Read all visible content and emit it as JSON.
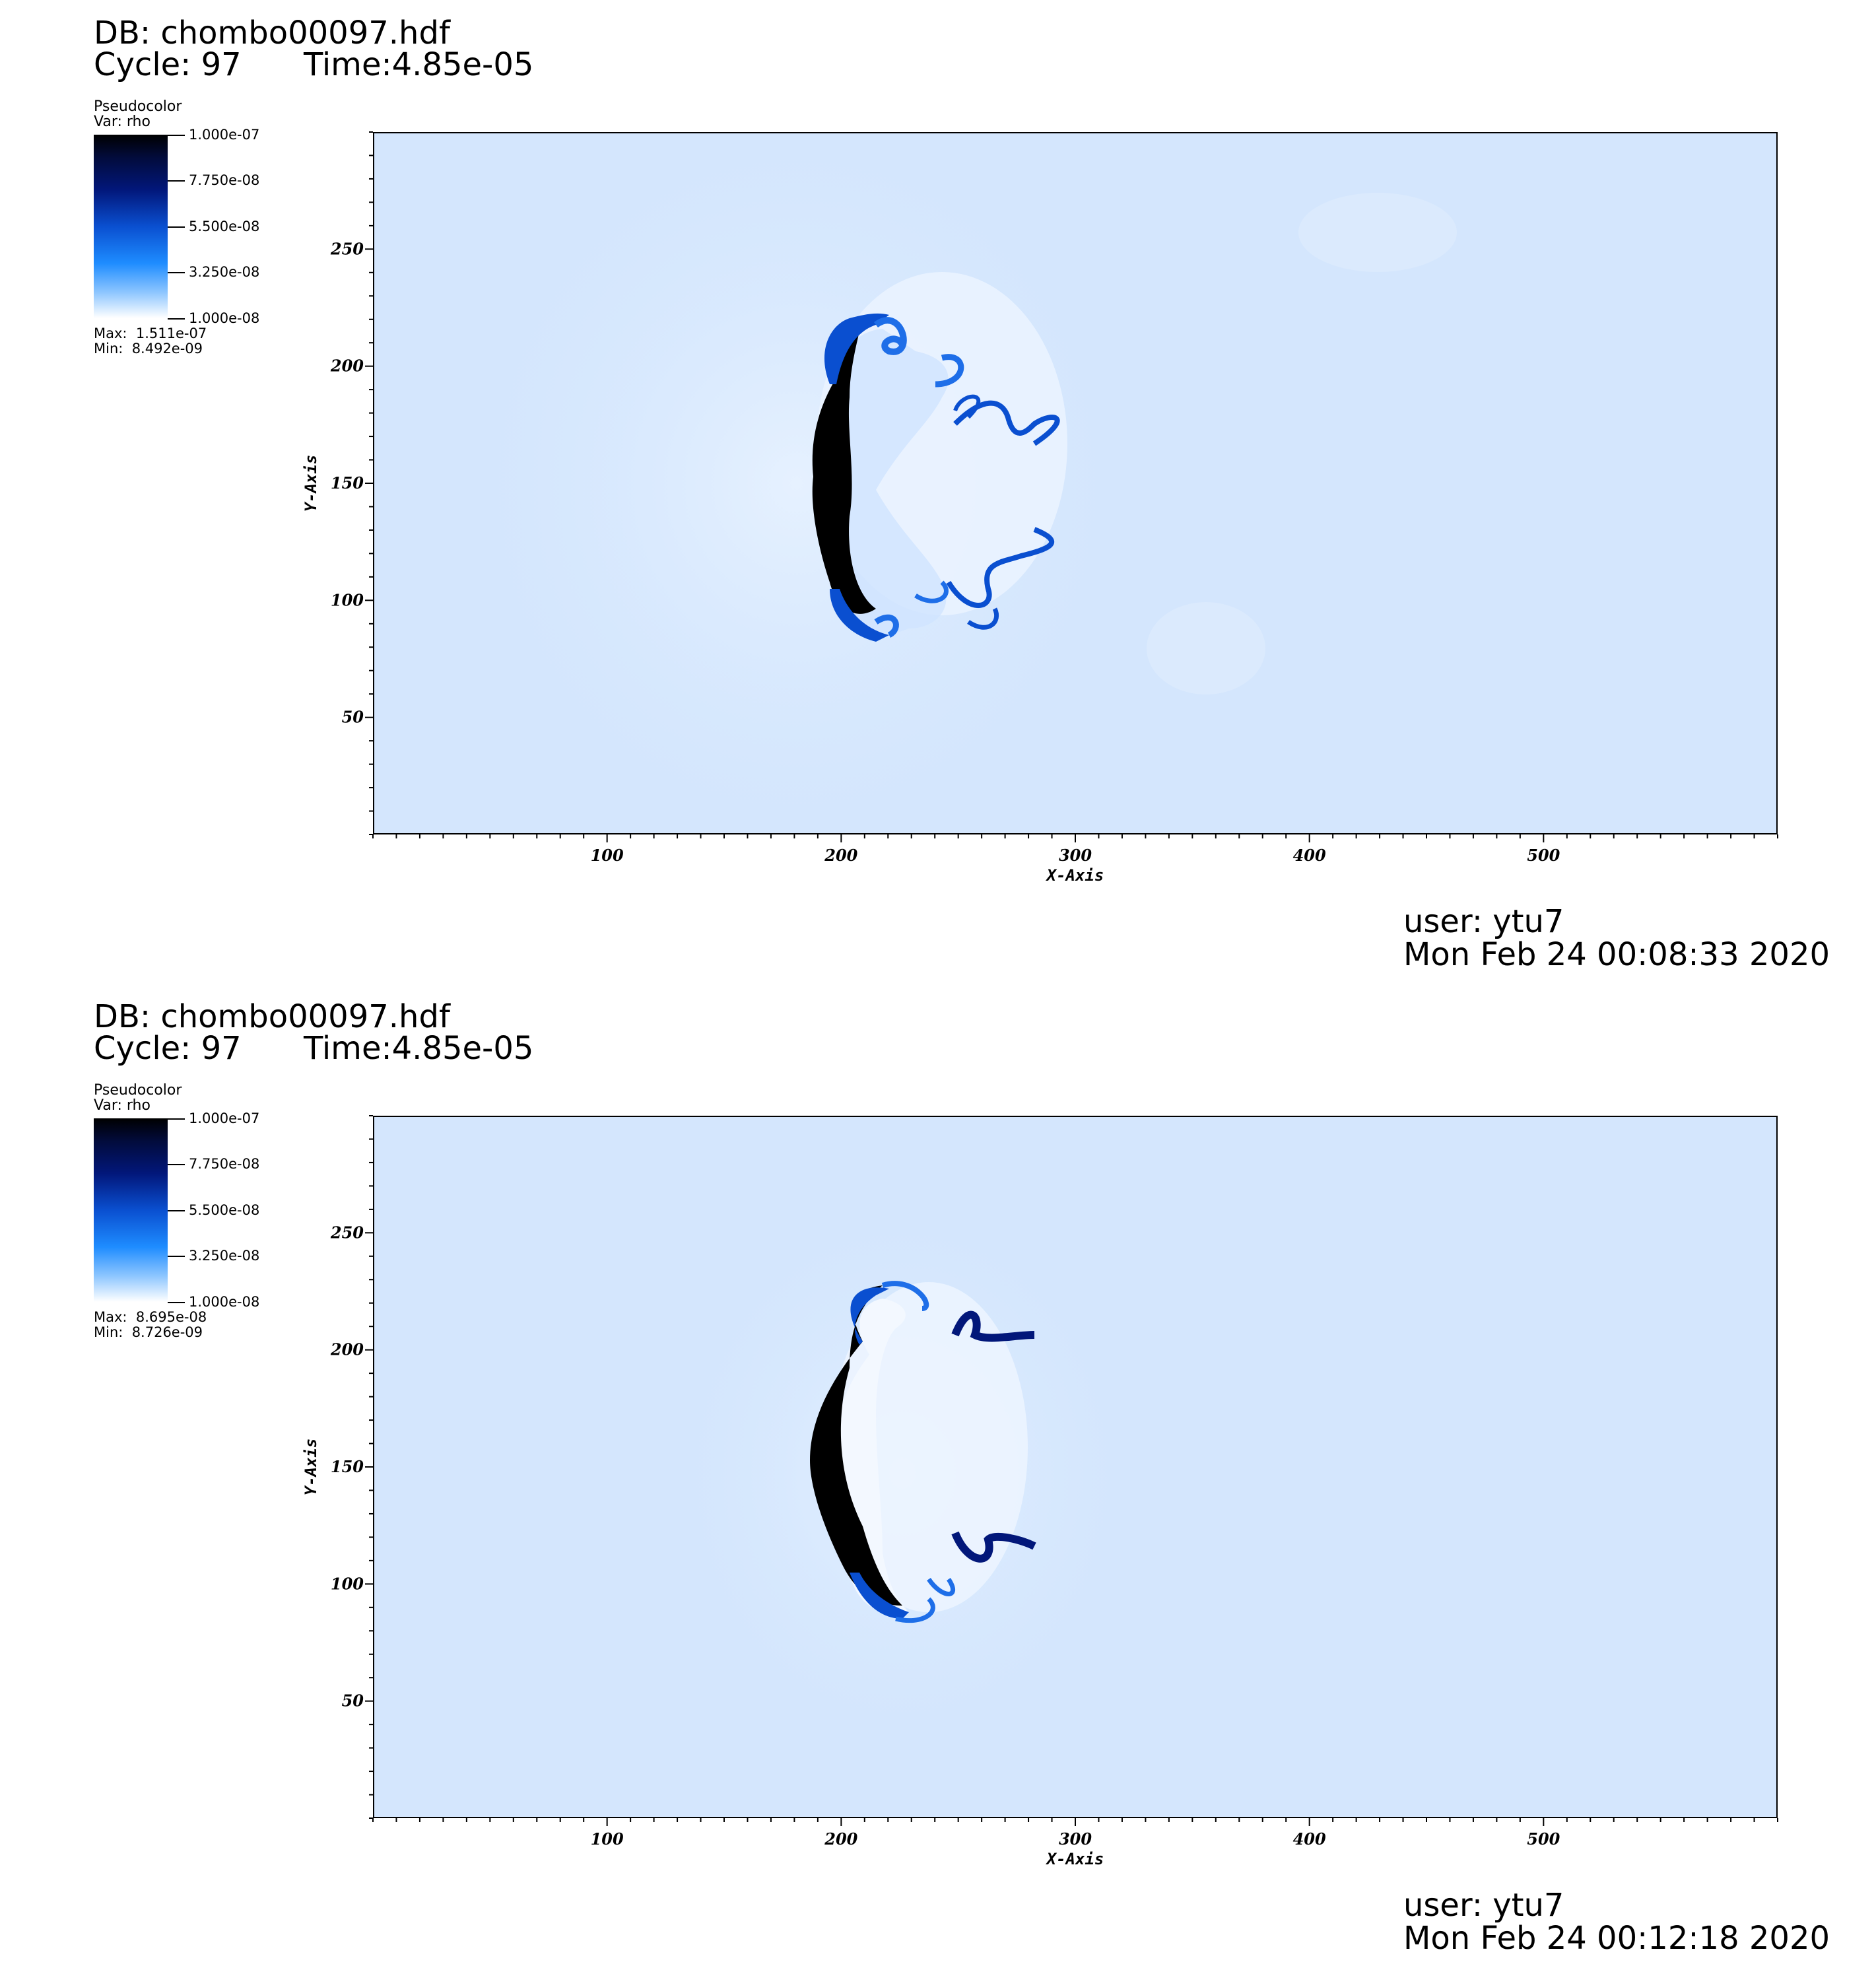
{
  "panels": [
    {
      "db_label": "DB: chombo00097.hdf",
      "cycle_label": "Cycle: 97",
      "time_label": "Time:4.85e-05",
      "legend": {
        "title": "Pseudocolor",
        "var": "Var: rho",
        "ticks": [
          "1.000e-07",
          "7.750e-08",
          "5.500e-08",
          "3.250e-08",
          "1.000e-08"
        ],
        "max": "Max:  1.511e-07",
        "min": "Min:  8.492e-09"
      },
      "user_label": "user: ytu7",
      "date_label": "Mon Feb 24 00:08:33 2020"
    },
    {
      "db_label": "DB: chombo00097.hdf",
      "cycle_label": "Cycle: 97",
      "time_label": "Time:4.85e-05",
      "legend": {
        "title": "Pseudocolor",
        "var": "Var: rho",
        "ticks": [
          "1.000e-07",
          "7.750e-08",
          "5.500e-08",
          "3.250e-08",
          "1.000e-08"
        ],
        "max": "Max:  8.695e-08",
        "min": "Min:  8.726e-09"
      },
      "user_label": "user: ytu7",
      "date_label": "Mon Feb 24 00:12:18 2020"
    }
  ],
  "chart_data": [
    {
      "type": "heatmap",
      "variable": "rho",
      "xlabel": "X-Axis",
      "ylabel": "Y-Axis",
      "xlim": [
        0,
        600
      ],
      "ylim": [
        0,
        300
      ],
      "xticks": [
        100,
        200,
        300,
        400,
        500
      ],
      "yticks": [
        50,
        100,
        150,
        200,
        250
      ],
      "colorbar_range": [
        1e-08,
        1e-07
      ],
      "colormap": [
        "#ffffff",
        "#1e8cff",
        "#0a4fd0",
        "#02177a",
        "#000000"
      ],
      "background_color": "#d6e8fd",
      "data_max": 1.511e-07,
      "data_min": 8.492e-09
    },
    {
      "type": "heatmap",
      "variable": "rho",
      "xlabel": "X-Axis",
      "ylabel": "Y-Axis",
      "xlim": [
        0,
        600
      ],
      "ylim": [
        0,
        300
      ],
      "xticks": [
        100,
        200,
        300,
        400,
        500
      ],
      "yticks": [
        50,
        100,
        150,
        200,
        250
      ],
      "colorbar_range": [
        1e-08,
        1e-07
      ],
      "colormap": [
        "#ffffff",
        "#1e8cff",
        "#0a4fd0",
        "#02177a",
        "#000000"
      ],
      "background_color": "#d6e8fd",
      "data_max": 8.695e-08,
      "data_min": 8.726e-09
    }
  ]
}
